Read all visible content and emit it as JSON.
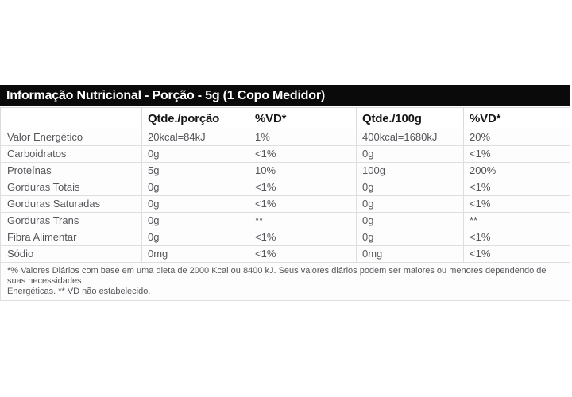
{
  "colors": {
    "title_bar_bg": "#0a0a0a",
    "title_bar_text": "#ffffff",
    "header_text": "#161616",
    "body_text": "#55565a",
    "border": "#dedede"
  },
  "title_bar": {
    "title": "Informação Nutricional - Porção - 5g (1 Copo Medidor)"
  },
  "table": {
    "headers": [
      "",
      "Qtde./porção",
      "%VD*",
      "Qtde./100g",
      "%VD*"
    ],
    "rows": [
      {
        "label": "Valor Energético",
        "qtde_porcao": "20kcal=84kJ",
        "vd_porcao": "1%",
        "qtde_100g": "400kcal=1680kJ",
        "vd_100g": "20%"
      },
      {
        "label": "Carboidratos",
        "qtde_porcao": "0g",
        "vd_porcao": "<1%",
        "qtde_100g": "0g",
        "vd_100g": "<1%"
      },
      {
        "label": "Proteínas",
        "qtde_porcao": "5g",
        "vd_porcao": "10%",
        "qtde_100g": "100g",
        "vd_100g": "200%"
      },
      {
        "label": "Gorduras Totais",
        "qtde_porcao": "0g",
        "vd_porcao": "<1%",
        "qtde_100g": "0g",
        "vd_100g": "<1%"
      },
      {
        "label": "Gorduras Saturadas",
        "qtde_porcao": "0g",
        "vd_porcao": "<1%",
        "qtde_100g": "0g",
        "vd_100g": "<1%"
      },
      {
        "label": "Gorduras Trans",
        "qtde_porcao": "0g",
        "vd_porcao": "**",
        "qtde_100g": "0g",
        "vd_100g": "**"
      },
      {
        "label": "Fibra Alimentar",
        "qtde_porcao": "0g",
        "vd_porcao": "<1%",
        "qtde_100g": "0g",
        "vd_100g": "<1%"
      },
      {
        "label": "Sódio",
        "qtde_porcao": "0mg",
        "vd_porcao": "<1%",
        "qtde_100g": "0mg",
        "vd_100g": "<1%"
      }
    ],
    "footnote_lines": [
      "*% Valores Diários com base em uma dieta de 2000 Kcal ou 8400 kJ. Seus valores diários podem ser maiores ou menores dependendo de suas necessidades",
      "Energéticas. ** VD não estabelecido."
    ]
  }
}
